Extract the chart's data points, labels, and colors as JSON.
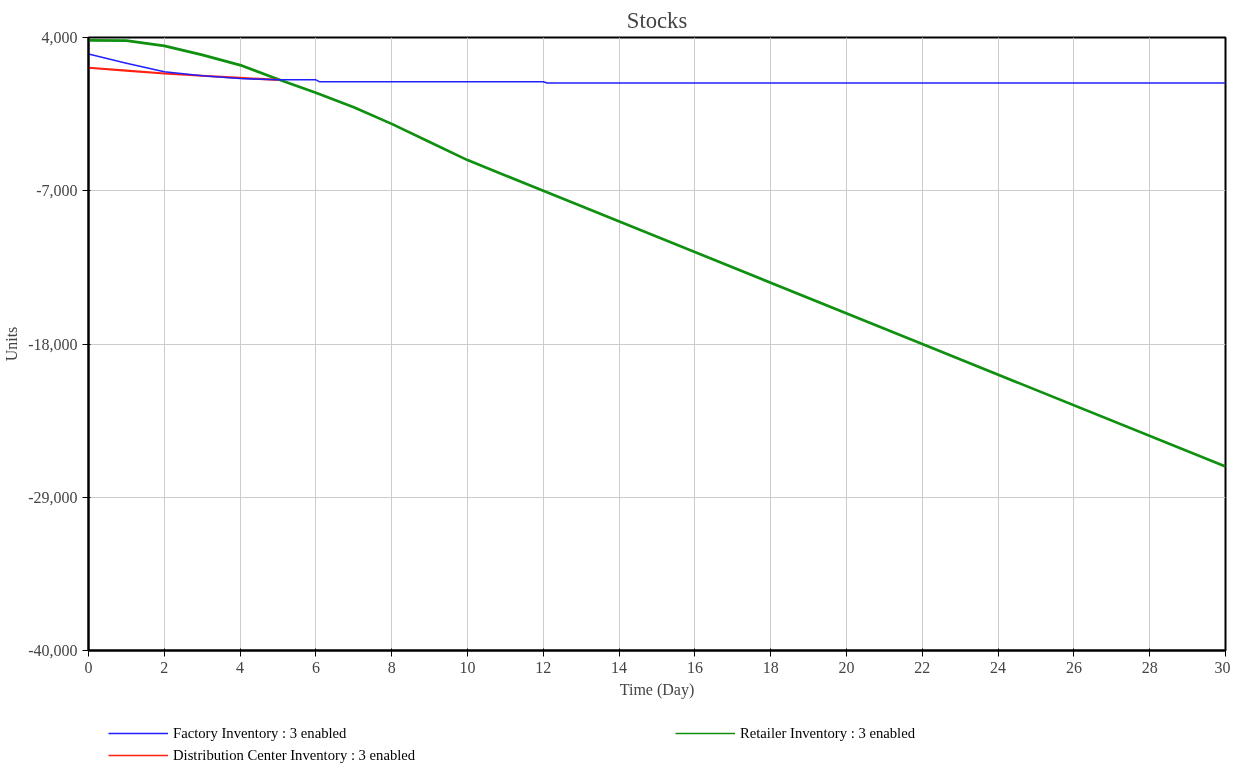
{
  "chart_data": {
    "type": "line",
    "title": "Stocks",
    "xlabel": "Time (Day)",
    "ylabel": "Units",
    "xlim": [
      0,
      30
    ],
    "xticks": [
      0,
      2,
      4,
      6,
      8,
      10,
      12,
      14,
      16,
      18,
      20,
      22,
      24,
      26,
      28,
      30
    ],
    "ylim": [
      -40000,
      4000
    ],
    "yticks": [
      {
        "value": 4000,
        "label": "4,000"
      },
      {
        "value": -7000,
        "label": "-7,000"
      },
      {
        "value": -18000,
        "label": "-18,000"
      },
      {
        "value": -29000,
        "label": "-29,000"
      },
      {
        "value": -40000,
        "label": "-40,000"
      }
    ],
    "grid": true,
    "legend": "bottom",
    "line_style": "solid",
    "marker": "none",
    "series": [
      {
        "name": "Factory Inventory : 3 enabled",
        "color": "#2020ff",
        "x": [
          0,
          1,
          2,
          3,
          4,
          5,
          6,
          6.1,
          12,
          12.1,
          30
        ],
        "values": [
          2820,
          2150,
          1540,
          1250,
          1050,
          960,
          960,
          820,
          820,
          740,
          740
        ]
      },
      {
        "name": "Distribution Center Inventory : 3 enabled",
        "color": "#ff2010",
        "x": [
          0,
          1,
          2,
          3,
          4,
          5
        ],
        "values": [
          1830,
          1620,
          1420,
          1250,
          1100,
          960
        ]
      },
      {
        "name": "Retailer Inventory : 3 enabled",
        "color": "#109010",
        "x": [
          0,
          1,
          2,
          3,
          4,
          5,
          6,
          7,
          8,
          9,
          10,
          11,
          12,
          22,
          30
        ],
        "values": [
          3800,
          3780,
          3400,
          2750,
          2020,
          1010,
          40,
          -1000,
          -2200,
          -3500,
          -4800,
          -5900,
          -7000,
          -18000,
          -26800
        ]
      }
    ]
  }
}
